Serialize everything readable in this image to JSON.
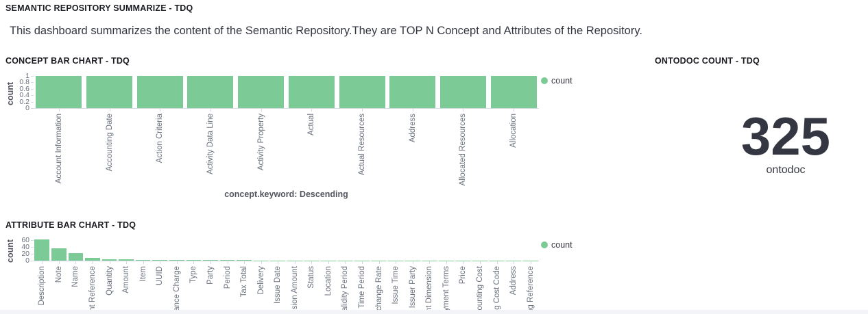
{
  "page": {
    "title": "SEMANTIC REPOSITORY SUMMARIZE - TDQ",
    "description": "This dashboard summarizes the content of the Semantic Repository.They are TOP N Concept and Attributes of the Repository."
  },
  "concept_panel": {
    "title": "CONCEPT BAR CHART - TDQ",
    "legend_label": "count"
  },
  "ontodoc_panel": {
    "title": "ONTODOC COUNT - TDQ",
    "value": "325",
    "label": "ontodoc"
  },
  "attribute_panel": {
    "title": "ATTRIBUTE BAR CHART - TDQ",
    "legend_label": "count"
  },
  "colors": {
    "bar_green": "#7CCB96",
    "axis_line": "#d3dae6",
    "tick_text": "#6a717d",
    "title_text": "#1a1c21",
    "value_text": "#343741"
  },
  "chart_data": [
    {
      "type": "bar",
      "title": "CONCEPT BAR CHART - TDQ",
      "categories": [
        "Account Information",
        "Accounting Date",
        "Action Criteria",
        "Activity Data Line",
        "Activity Property",
        "Actual",
        "Actual Resources",
        "Address",
        "Allocated Resources",
        "Allocation"
      ],
      "values": [
        1,
        1,
        1,
        1,
        1,
        1,
        1,
        1,
        1,
        1
      ],
      "xlabel": "concept.keyword: Descending",
      "ylabel": "count",
      "yticks": [
        0,
        0.2,
        0.4,
        0.6,
        0.8,
        1
      ],
      "ylim": [
        0,
        1
      ],
      "legend": [
        "count"
      ],
      "legend_position": "right",
      "grid": false,
      "bar_color": "#7CCB96"
    },
    {
      "type": "bar",
      "title": "ATTRIBUTE BAR CHART - TDQ",
      "categories": [
        "Description",
        "Note",
        "Name",
        "ent Reference",
        "Quantity",
        "Amount",
        "Item",
        "UUID",
        "vance Charge",
        "Type",
        "Party",
        "Period",
        "Tax Total",
        "Delivery",
        "Issue Date",
        "nsion Amount",
        "Status",
        "Location",
        "Validity Period",
        "e Time Period",
        "Exchange Rate",
        "Issue Time",
        "Issuer Party",
        "ent Dimension",
        "ayment Terms",
        "Price",
        "counting Cost",
        "ing Cost Code",
        "Address",
        "ling Reference"
      ],
      "values": [
        63,
        36,
        22,
        8,
        5,
        4,
        3,
        3,
        2,
        2,
        2,
        2,
        2,
        1,
        1,
        1,
        1,
        1,
        1,
        1,
        1,
        1,
        1,
        1,
        1,
        1,
        1,
        1,
        1,
        1
      ],
      "xlabel": "",
      "ylabel": "count",
      "yticks": [
        0,
        20,
        40,
        60
      ],
      "ylim": [
        0,
        66
      ],
      "legend": [
        "count"
      ],
      "legend_position": "right",
      "grid": false,
      "bar_color": "#7CCB96"
    }
  ]
}
